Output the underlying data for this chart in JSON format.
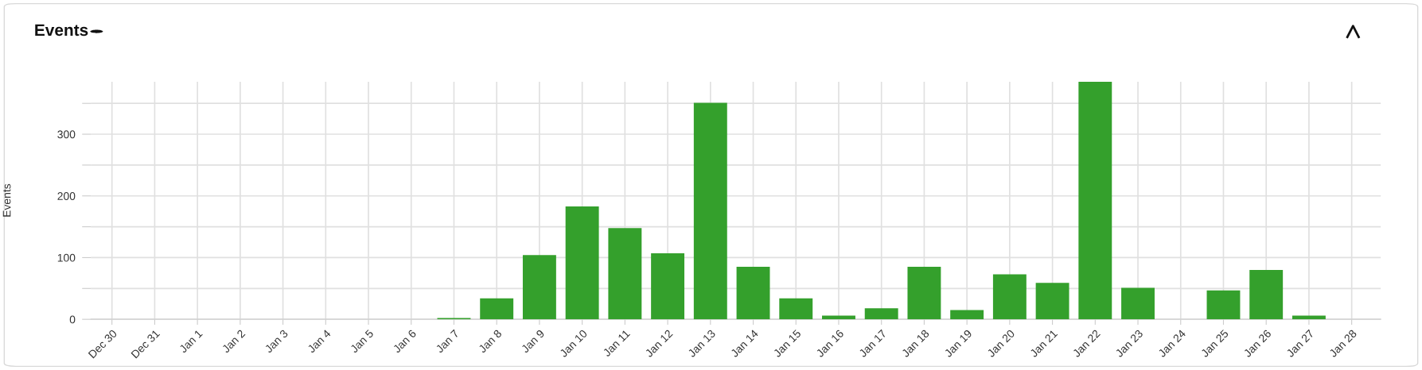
{
  "chart_data": {
    "type": "bar",
    "title": "Events",
    "ylabel": "Events",
    "categories": [
      "Dec 30",
      "Dec 31",
      "Jan 1",
      "Jan 2",
      "Jan 3",
      "Jan 4",
      "Jan 5",
      "Jan 6",
      "Jan 7",
      "Jan 8",
      "Jan 9",
      "Jan 10",
      "Jan 11",
      "Jan 12",
      "Jan 13",
      "Jan 14",
      "Jan 15",
      "Jan 16",
      "Jan 17",
      "Jan 18",
      "Jan 19",
      "Jan 20",
      "Jan 21",
      "Jan 22",
      "Jan 23",
      "Jan 24",
      "Jan 25",
      "Jan 26",
      "Jan 27",
      "Jan 28"
    ],
    "values": [
      0,
      0,
      0,
      0,
      0,
      0,
      0,
      0,
      2,
      34,
      104,
      183,
      148,
      107,
      351,
      85,
      34,
      6,
      18,
      85,
      15,
      73,
      59,
      385,
      51,
      0,
      47,
      80,
      6,
      0
    ],
    "color": "#34a02c",
    "ylim": [
      0,
      385
    ],
    "yticks": [
      0,
      {
        "value": 50,
        "label": null
      },
      100,
      {
        "value": 150,
        "label": null
      },
      200,
      {
        "value": 250,
        "label": null
      },
      300,
      {
        "value": 350,
        "label": null
      }
    ],
    "grid": true
  }
}
